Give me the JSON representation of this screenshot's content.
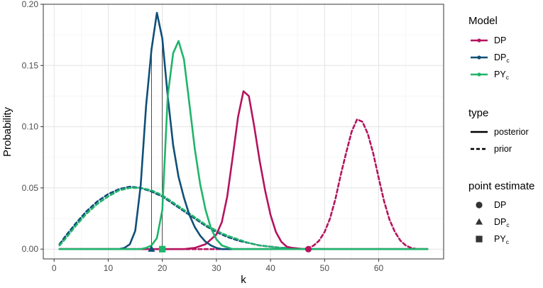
{
  "chart_data": {
    "type": "line",
    "xlabel": "k",
    "ylabel": "Probability",
    "xlim": [
      -2,
      72
    ],
    "ylim": [
      -0.008,
      0.2
    ],
    "xticks": [
      0,
      10,
      20,
      30,
      40,
      50,
      60
    ],
    "yticks": [
      0.0,
      0.05,
      0.1,
      0.15,
      0.2
    ],
    "ytick_labels": [
      "0.00",
      "0.05",
      "0.10",
      "0.15",
      "0.20"
    ],
    "grid": true,
    "legend_position": "right",
    "colors": {
      "DP": "#b5135f",
      "DPc": "#0f4f78",
      "PYc": "#1fb46b"
    },
    "series": [
      {
        "model": "DP",
        "type": "posterior",
        "x": [
          1,
          24,
          26,
          28,
          30,
          31,
          32,
          33,
          34,
          35,
          36,
          37,
          38,
          39,
          40,
          41,
          42,
          43,
          44,
          46,
          50,
          69
        ],
        "y": [
          0,
          0,
          0.001,
          0.004,
          0.012,
          0.022,
          0.043,
          0.075,
          0.108,
          0.129,
          0.125,
          0.1,
          0.072,
          0.048,
          0.028,
          0.014,
          0.006,
          0.002,
          0.001,
          0,
          0,
          0
        ]
      },
      {
        "model": "DPc",
        "type": "posterior",
        "x": [
          1,
          12,
          13,
          14,
          15,
          16,
          17,
          18,
          19,
          20,
          21,
          22,
          23,
          24,
          25,
          26,
          27,
          28,
          29,
          30,
          31,
          33,
          69
        ],
        "y": [
          0,
          0,
          0.001,
          0.004,
          0.015,
          0.052,
          0.117,
          0.163,
          0.193,
          0.172,
          0.125,
          0.085,
          0.059,
          0.042,
          0.028,
          0.018,
          0.011,
          0.006,
          0.003,
          0.001,
          0,
          0,
          0
        ]
      },
      {
        "model": "PYc",
        "type": "posterior",
        "x": [
          1,
          16,
          17,
          18,
          19,
          20,
          21,
          22,
          23,
          24,
          25,
          26,
          27,
          28,
          29,
          30,
          31,
          33,
          69
        ],
        "y": [
          0,
          0,
          0.001,
          0.003,
          0.009,
          0.032,
          0.125,
          0.16,
          0.17,
          0.155,
          0.119,
          0.082,
          0.053,
          0.032,
          0.017,
          0.008,
          0.003,
          0,
          0
        ]
      },
      {
        "model": "DP",
        "type": "prior",
        "x": [
          1,
          46,
          47,
          48,
          49,
          50,
          51,
          52,
          53,
          54,
          55,
          56,
          57,
          58,
          59,
          60,
          61,
          62,
          63,
          64,
          65,
          66,
          67,
          69
        ],
        "y": [
          0,
          0,
          0.001,
          0.003,
          0.007,
          0.014,
          0.025,
          0.041,
          0.061,
          0.079,
          0.096,
          0.106,
          0.104,
          0.094,
          0.078,
          0.058,
          0.039,
          0.024,
          0.014,
          0.007,
          0.003,
          0.001,
          0,
          0
        ]
      },
      {
        "model": "DPc",
        "type": "prior",
        "x": [
          1,
          2,
          4,
          6,
          8,
          10,
          12,
          14,
          16,
          18,
          20,
          22,
          24,
          26,
          28,
          30,
          32,
          34,
          36,
          38,
          40,
          42,
          44,
          46,
          48,
          50
        ],
        "y": [
          0.004,
          0.01,
          0.021,
          0.031,
          0.039,
          0.045,
          0.049,
          0.051,
          0.05,
          0.047,
          0.043,
          0.037,
          0.031,
          0.025,
          0.019,
          0.014,
          0.01,
          0.007,
          0.005,
          0.003,
          0.002,
          0.001,
          0.001,
          0,
          0,
          0
        ]
      },
      {
        "model": "PYc",
        "type": "prior",
        "x": [
          1,
          2,
          4,
          6,
          8,
          10,
          12,
          14,
          16,
          18,
          20,
          22,
          24,
          26,
          28,
          30,
          32,
          34,
          36,
          38,
          40,
          42,
          44,
          46,
          48,
          50
        ],
        "y": [
          0.003,
          0.008,
          0.019,
          0.029,
          0.037,
          0.043,
          0.048,
          0.05,
          0.05,
          0.048,
          0.044,
          0.038,
          0.032,
          0.026,
          0.02,
          0.015,
          0.011,
          0.008,
          0.005,
          0.003,
          0.002,
          0.001,
          0.001,
          0,
          0,
          0
        ]
      }
    ],
    "point_estimates": [
      {
        "model": "DP",
        "shape": "circle",
        "x": 47,
        "y": 0
      },
      {
        "model": "DPc",
        "shape": "triangle",
        "x": 18,
        "y": 0
      },
      {
        "model": "PYc",
        "shape": "square",
        "x": 20,
        "y": 0
      }
    ],
    "vertical_lines": [
      {
        "x": 18,
        "y_top": 0.163
      },
      {
        "x": 20,
        "y_top": 0.172
      }
    ]
  },
  "legend": {
    "model_title": "Model",
    "model_items": [
      {
        "base": "DP",
        "sub": "",
        "color": "#b5135f"
      },
      {
        "base": "DP",
        "sub": "c",
        "color": "#0f4f78"
      },
      {
        "base": "PY",
        "sub": "c",
        "color": "#1fb46b"
      }
    ],
    "type_title": "type",
    "type_items": [
      "posterior",
      "prior"
    ],
    "point_title": "point estimate",
    "point_items": [
      {
        "base": "DP",
        "sub": "",
        "shape": "circle"
      },
      {
        "base": "DP",
        "sub": "c",
        "shape": "triangle"
      },
      {
        "base": "PY",
        "sub": "c",
        "shape": "square"
      }
    ]
  }
}
